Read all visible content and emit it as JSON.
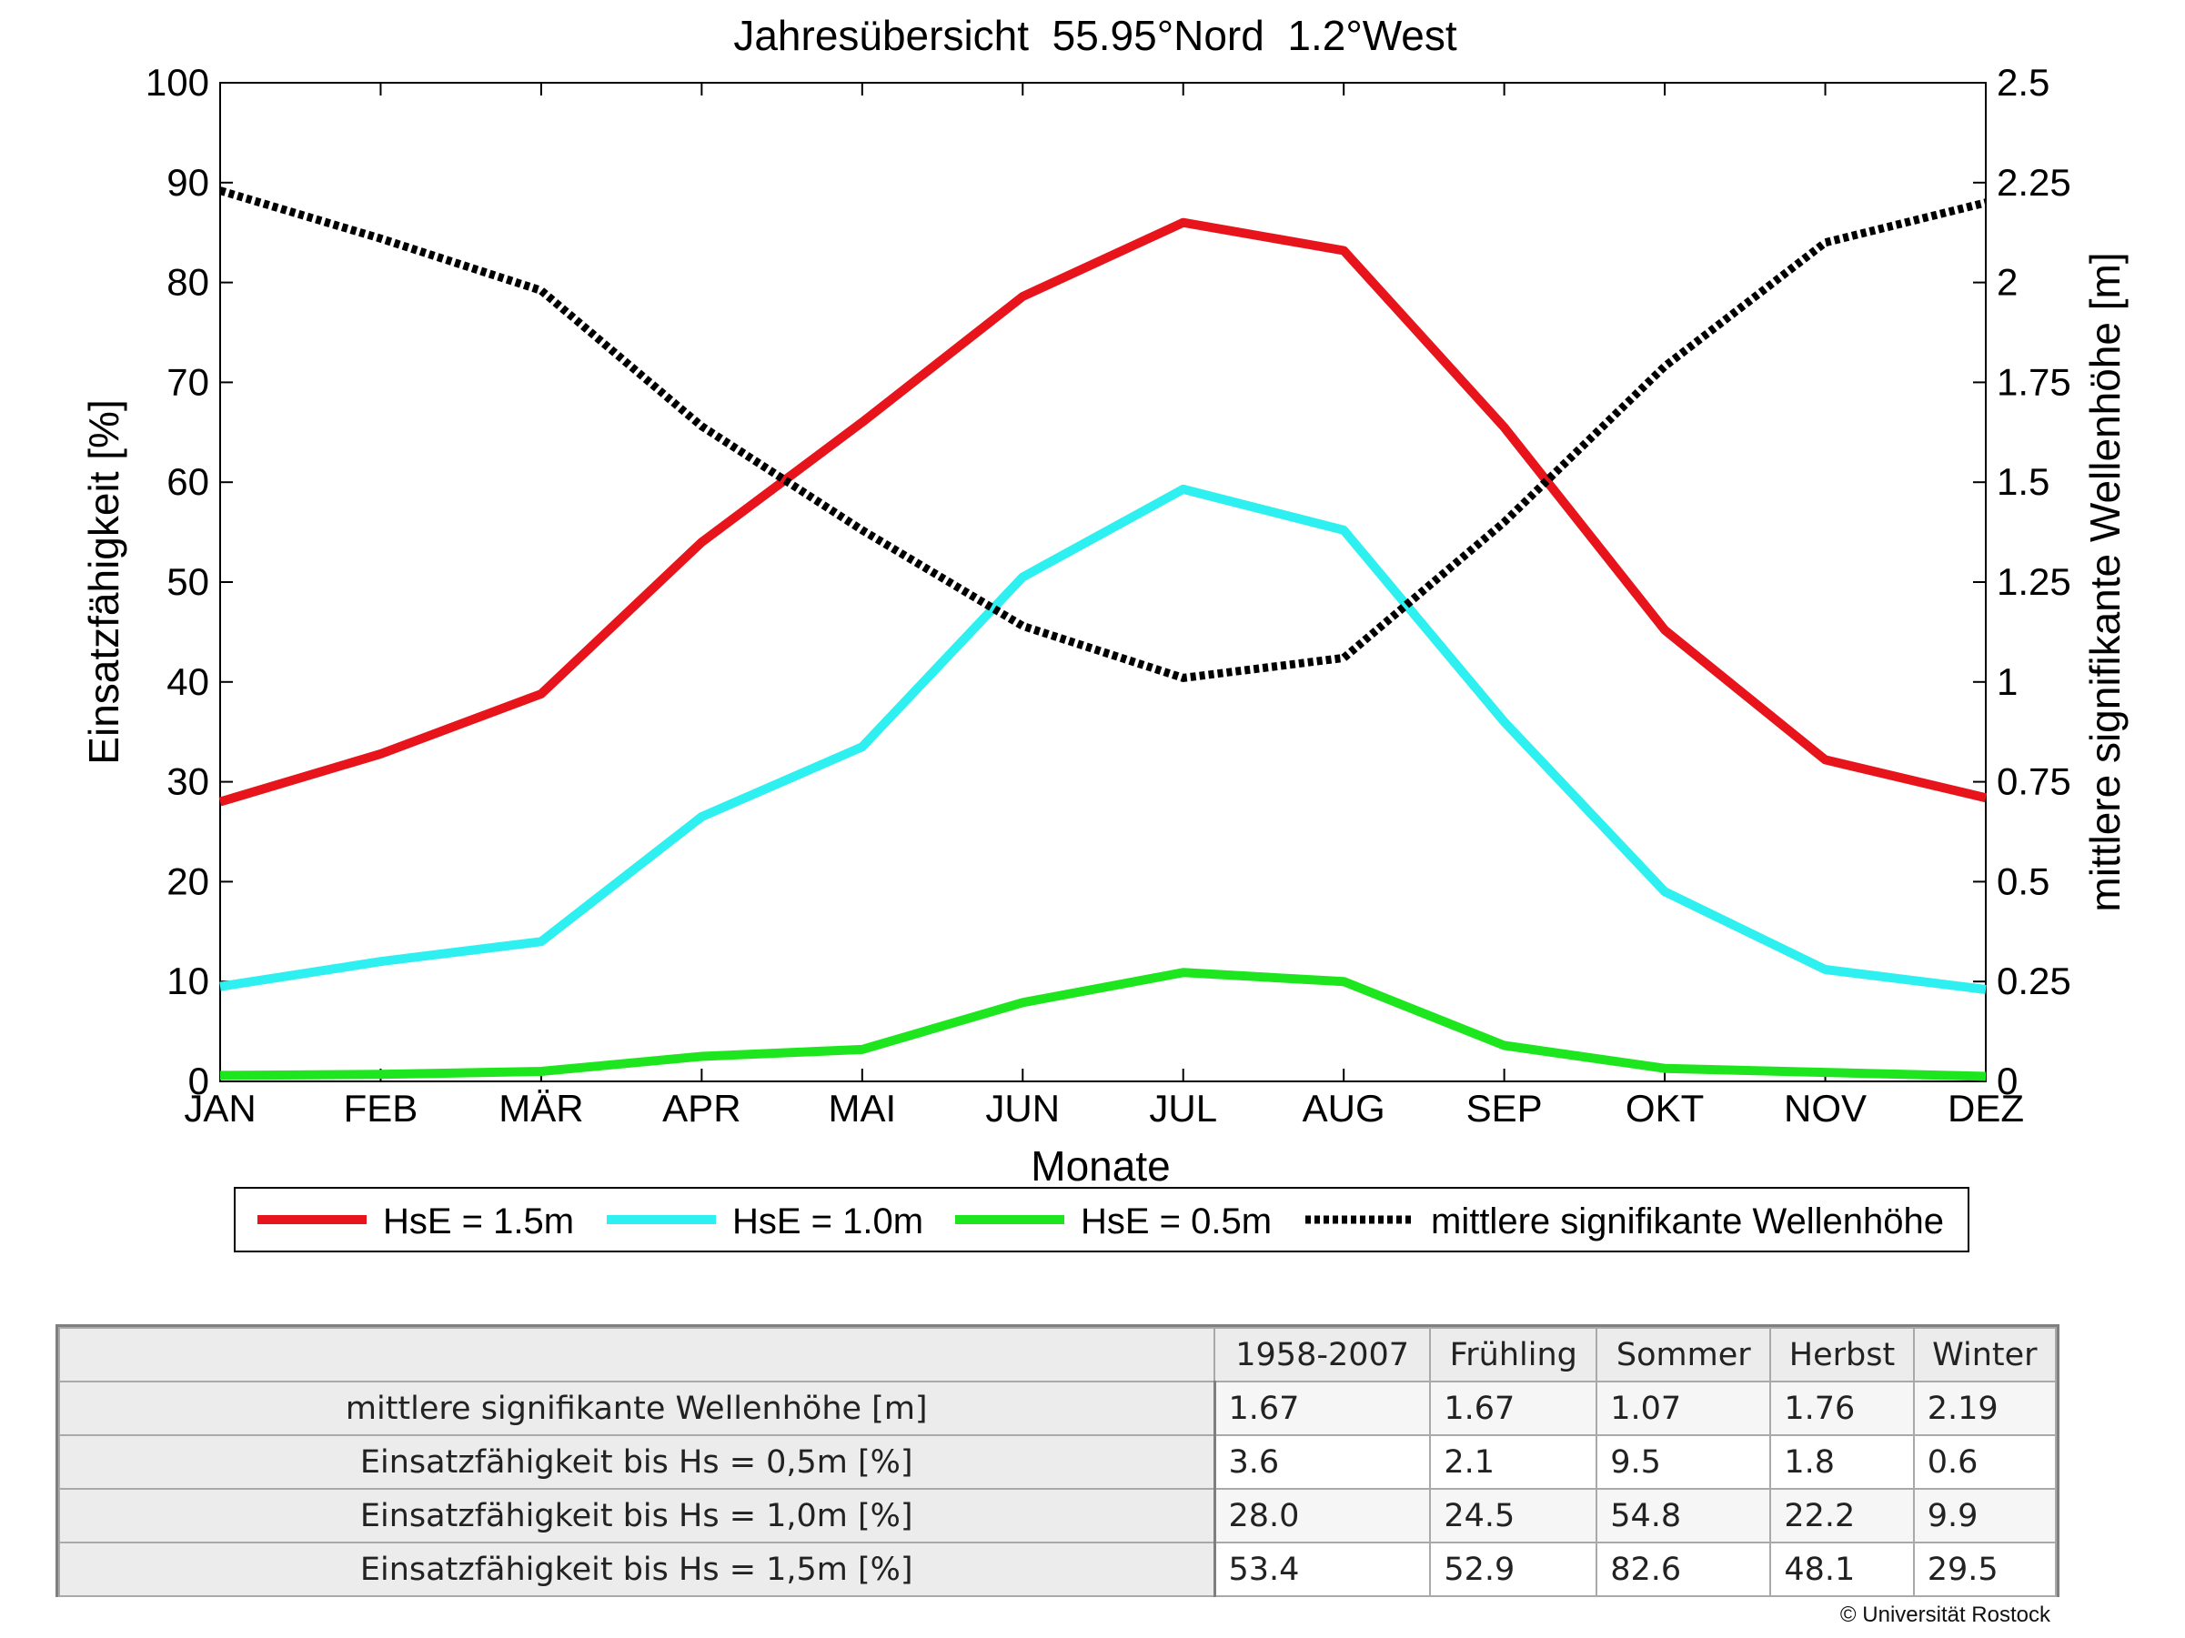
{
  "chart_data": {
    "type": "line",
    "title": "Jahresübersicht  55.95°Nord  1.2°West",
    "xlabel": "Monate",
    "ylabel": "Einsatzfähigkeit [%]",
    "ylabel_right": "mittlere signifikante Wellenhöhe [m]",
    "categories": [
      "JAN",
      "FEB",
      "MÄR",
      "APR",
      "MAI",
      "JUN",
      "JUL",
      "AUG",
      "SEP",
      "OKT",
      "NOV",
      "DEZ"
    ],
    "ylim": [
      0,
      100
    ],
    "yticks": [
      "0",
      "10",
      "20",
      "30",
      "40",
      "50",
      "60",
      "70",
      "80",
      "90",
      "100"
    ],
    "ylim_right": [
      0,
      2.5
    ],
    "yticks_right": [
      "0",
      "0.25",
      "0.5",
      "0.75",
      "1",
      "1.25",
      "1.5",
      "1.75",
      "2",
      "2.25",
      "2.5"
    ],
    "grid": false,
    "legend_position": "bottom",
    "series": [
      {
        "name": "HsE = 1.5m",
        "axis": "left",
        "color": "#e8141c",
        "style": "solid",
        "values": [
          28,
          32.8,
          38.8,
          54,
          66,
          78.6,
          86,
          83.2,
          65.5,
          45.2,
          32.2,
          28.4
        ]
      },
      {
        "name": "HsE = 1.0m",
        "axis": "left",
        "color": "#2ef0f0",
        "style": "solid",
        "values": [
          9.5,
          12,
          14,
          26.5,
          33.5,
          50.5,
          59.3,
          55.2,
          36,
          19,
          11.2,
          9.2
        ]
      },
      {
        "name": "HsE = 0.5m",
        "axis": "left",
        "color": "#1ee61e",
        "style": "solid",
        "values": [
          0.6,
          0.7,
          1,
          2.5,
          3.2,
          7.9,
          10.9,
          10,
          3.6,
          1.3,
          0.9,
          0.5
        ]
      },
      {
        "name": "mittlere signifikante Wellenhöhe",
        "axis": "right",
        "color": "#000000",
        "style": "dotted",
        "values": [
          2.23,
          2.11,
          1.98,
          1.64,
          1.38,
          1.14,
          1.01,
          1.06,
          1.4,
          1.79,
          2.1,
          2.2
        ]
      }
    ]
  },
  "summary_table": {
    "columns": [
      "1958-2007",
      "Frühling",
      "Sommer",
      "Herbst",
      "Winter"
    ],
    "rows": [
      {
        "label": "mittlere signifikante Wellenhöhe [m]",
        "values": [
          "1.67",
          "1.67",
          "1.07",
          "1.76",
          "2.19"
        ]
      },
      {
        "label": "Einsatzfähigkeit bis Hs = 0,5m [%]",
        "values": [
          "3.6",
          "2.1",
          "9.5",
          "1.8",
          "0.6"
        ]
      },
      {
        "label": "Einsatzfähigkeit bis Hs = 1,0m [%]",
        "values": [
          "28.0",
          "24.5",
          "54.8",
          "22.2",
          "9.9"
        ]
      },
      {
        "label": "Einsatzfähigkeit bis Hs = 1,5m [%]",
        "values": [
          "53.4",
          "52.9",
          "82.6",
          "48.1",
          "29.5"
        ]
      }
    ]
  },
  "copyright": "© Universität Rostock"
}
